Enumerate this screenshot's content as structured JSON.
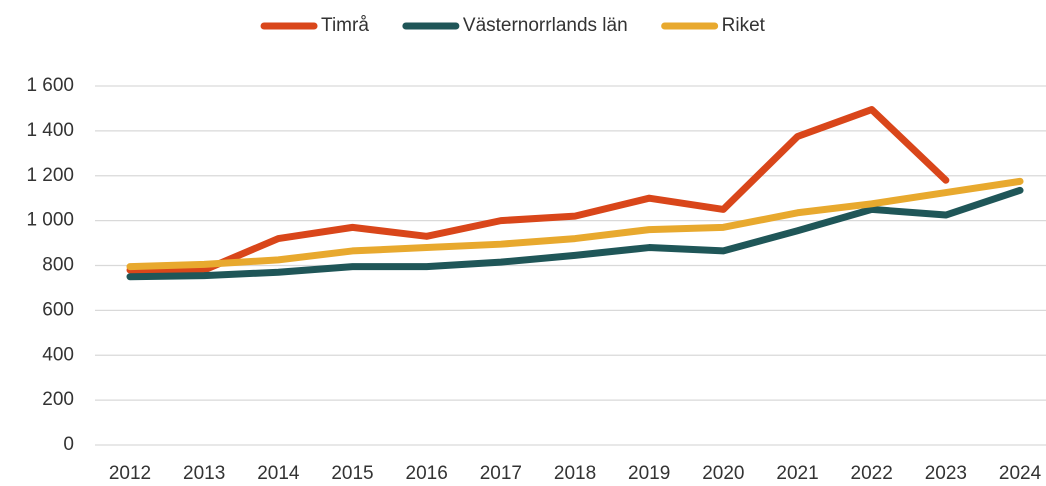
{
  "chart_data": {
    "type": "line",
    "categories": [
      "2012",
      "2013",
      "2014",
      "2015",
      "2016",
      "2017",
      "2018",
      "2019",
      "2020",
      "2021",
      "2022",
      "2023",
      "2024"
    ],
    "series": [
      {
        "name": "Timrå",
        "color": "#d9461a",
        "values": [
          780,
          780,
          920,
          970,
          930,
          1000,
          1020,
          1100,
          1050,
          1375,
          1495,
          1180,
          null
        ]
      },
      {
        "name": "Västernorrlands län",
        "color": "#1f5658",
        "values": [
          750,
          755,
          770,
          795,
          795,
          815,
          845,
          880,
          865,
          955,
          1050,
          1025,
          1135
        ]
      },
      {
        "name": "Riket",
        "color": "#e8a92e",
        "values": [
          795,
          805,
          825,
          865,
          880,
          895,
          920,
          960,
          970,
          1035,
          1075,
          1125,
          1175
        ]
      }
    ],
    "ylim": [
      0,
      1600
    ],
    "yticks": [
      0,
      200,
      400,
      600,
      800,
      {
        "value": 1000,
        "label": "1 000"
      },
      {
        "value": 1200,
        "label": "1 200"
      },
      {
        "value": 1400,
        "label": "1 400"
      },
      {
        "value": 1600,
        "label": "1 600"
      }
    ],
    "grid": true,
    "legend": "top"
  }
}
